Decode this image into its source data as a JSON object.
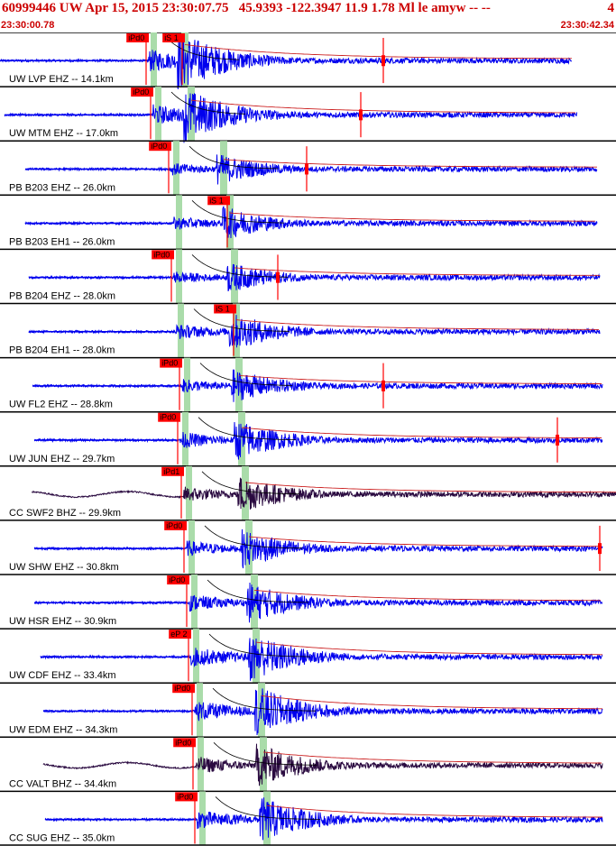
{
  "header": {
    "title": "60999446 UW Apr 15, 2015 23:30:07.75   45.9393 -122.3947 11.9 1.78 Ml le amyw -- --",
    "tag_count": "4",
    "start_time": "23:30:00.78",
    "end_time": "23:30:42.34"
  },
  "colors": {
    "header_text": "#cc0000",
    "trace_short_period": "#0000ee",
    "trace_broadband": "#2a0a40",
    "envelope_fit": "#cc2222",
    "pick_marker": "#ff0000",
    "theoretical_band": "#aadcaa",
    "separator": "#000000",
    "decay_curve": "#000000"
  },
  "channels": [
    {
      "label": "UW LVP EHZ -- 14.1km",
      "type": "sp",
      "picks": [
        "iPd0",
        "iS 1"
      ],
      "amp": 1.0,
      "s_lag": 3
    },
    {
      "label": "UW MTM EHZ -- 17.0km",
      "type": "sp",
      "picks": [
        "iPd0"
      ],
      "amp": 0.9,
      "s_lag": 4
    },
    {
      "label": "PB B203 EHZ -- 26.0km",
      "type": "sp",
      "picks": [
        "iPd0"
      ],
      "amp": 0.55,
      "s_lag": 5
    },
    {
      "label": "PB B203 EH1 -- 26.0km",
      "type": "sp",
      "picks": [
        "iS 1"
      ],
      "amp": 0.6,
      "s_lag": 5
    },
    {
      "label": "PB B204 EHZ -- 28.0km",
      "type": "sp",
      "picks": [
        "iPd0"
      ],
      "amp": 0.55,
      "s_lag": 6
    },
    {
      "label": "PB B204 EH1 -- 28.0km",
      "type": "sp",
      "picks": [
        "iS 1"
      ],
      "amp": 0.7,
      "s_lag": 6
    },
    {
      "label": "UW FL2 EHZ -- 28.8km",
      "type": "sp",
      "picks": [
        "iPd0"
      ],
      "amp": 0.6,
      "s_lag": 6
    },
    {
      "label": "UW JUN EHZ -- 29.7km",
      "type": "sp",
      "picks": [
        "iPd0"
      ],
      "amp": 0.75,
      "s_lag": 6
    },
    {
      "label": "CC SWF2 BHZ -- 29.9km",
      "type": "bb",
      "picks": [
        "iPd1"
      ],
      "amp": 0.7,
      "s_lag": 6
    },
    {
      "label": "UW SHW EHZ -- 30.8km",
      "type": "sp",
      "picks": [
        "iPd0"
      ],
      "amp": 0.7,
      "s_lag": 7
    },
    {
      "label": "UW HSR EHZ -- 30.9km",
      "type": "sp",
      "picks": [
        "iPd0"
      ],
      "amp": 0.75,
      "s_lag": 7
    },
    {
      "label": "UW CDF EHZ -- 33.4km",
      "type": "sp",
      "picks": [
        "eP 2"
      ],
      "amp": 0.9,
      "s_lag": 7
    },
    {
      "label": "UW EDM EHZ -- 34.3km",
      "type": "sp",
      "picks": [
        "iPd0"
      ],
      "amp": 0.95,
      "s_lag": 8
    },
    {
      "label": "CC VALT BHZ -- 34.4km",
      "type": "bb",
      "picks": [
        "iPd0"
      ],
      "amp": 0.8,
      "s_lag": 8
    },
    {
      "label": "CC SUG EHZ -- 35.0km",
      "type": "sp",
      "picks": [
        "iPd0"
      ],
      "amp": 0.85,
      "s_lag": 8
    }
  ]
}
